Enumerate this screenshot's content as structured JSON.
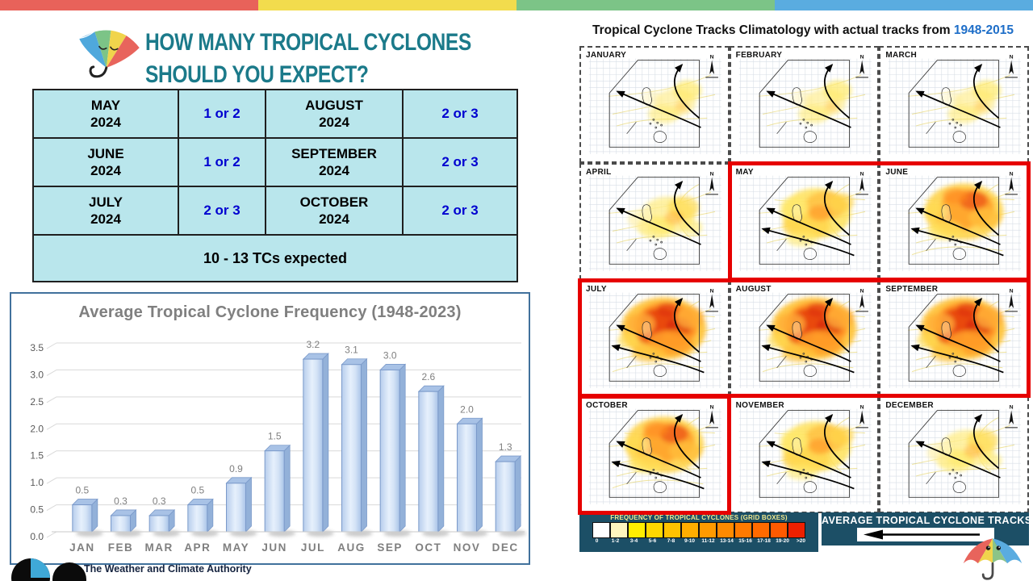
{
  "slide": {
    "ribbon_colors": [
      "#E8625A",
      "#F2DC4D",
      "#7CC487",
      "#5AACE0"
    ],
    "accent_teal": "#1B7A8A"
  },
  "header": {
    "title_line1": "HOW MANY TROPICAL CYCLONES",
    "title_line2": "SHOULD YOU EXPECT?"
  },
  "forecast_table": {
    "bg_color": "#B9E6EC",
    "value_color": "#0000D0",
    "rows": [
      {
        "month1": "MAY",
        "year1": "2024",
        "value1": "1 or 2",
        "month2": "AUGUST",
        "year2": "2024",
        "value2": "2 or 3"
      },
      {
        "month1": "JUNE",
        "year1": "2024",
        "value1": "1 or 2",
        "month2": "SEPTEMBER",
        "year2": "2024",
        "value2": "2 or 3"
      },
      {
        "month1": "JULY",
        "year1": "2024",
        "value1": "2 or 3",
        "month2": "OCTOBER",
        "year2": "2024",
        "value2": "2 or 3"
      }
    ],
    "footer": "10 - 13 TCs expected"
  },
  "chart_data": {
    "type": "bar",
    "title": "Average Tropical Cyclone Frequency (1948-2023)",
    "categories": [
      "JAN",
      "FEB",
      "MAR",
      "APR",
      "MAY",
      "JUN",
      "JUL",
      "AUG",
      "SEP",
      "OCT",
      "NOV",
      "DEC"
    ],
    "values": [
      0.5,
      0.3,
      0.3,
      0.5,
      0.9,
      1.5,
      3.2,
      3.1,
      3.0,
      2.6,
      2.0,
      1.3
    ],
    "ylim": [
      0,
      3.5
    ],
    "ytick_step": 0.5,
    "yticks": [
      "0.0",
      "0.5",
      "1.0",
      "1.5",
      "2.0",
      "2.5",
      "3.0",
      "3.5"
    ],
    "grid": true,
    "legend_position": "none",
    "xlabel": "",
    "ylabel": "",
    "bar_color": "#C5D9F1",
    "bar_border": "#7B9ACA",
    "label_color": "#7F7F7F"
  },
  "brand": {
    "footer_text": "The Weather and Climate Authority"
  },
  "tracks_panel": {
    "title_prefix": "Tropical Cyclone Tracks Climatology with actual tracks from ",
    "title_years": "1948-2015",
    "years_color": "#1E6EC8",
    "highlight_color": "#E60000",
    "months": [
      {
        "label": "JANUARY",
        "heat": 1,
        "highlighted": false
      },
      {
        "label": "FEBRUARY",
        "heat": 1,
        "highlighted": false
      },
      {
        "label": "MARCH",
        "heat": 1,
        "highlighted": false
      },
      {
        "label": "APRIL",
        "heat": 2,
        "highlighted": false
      },
      {
        "label": "MAY",
        "heat": 3,
        "highlighted": true
      },
      {
        "label": "JUNE",
        "heat": 4,
        "highlighted": true
      },
      {
        "label": "JULY",
        "heat": 5,
        "highlighted": true
      },
      {
        "label": "AUGUST",
        "heat": 5,
        "highlighted": true
      },
      {
        "label": "SEPTEMBER",
        "heat": 5,
        "highlighted": true
      },
      {
        "label": "OCTOBER",
        "heat": 4,
        "highlighted": true
      },
      {
        "label": "NOVEMBER",
        "heat": 3,
        "highlighted": false
      },
      {
        "label": "DECEMBER",
        "heat": 2,
        "highlighted": false
      }
    ],
    "legend": {
      "panel_color": "#1C4F66",
      "frequency_title": "FREQUENCY OF TROPICAL CYCLONES (GRID BOXES)",
      "bins": [
        "0",
        "1-2",
        "3-4",
        "5-6",
        "7-8",
        "9-10",
        "11-12",
        "13-14",
        "15-16",
        "17-18",
        "19-20",
        ">20"
      ],
      "bin_colors": [
        "#FFFFFF",
        "#FFF6BE",
        "#FFEE00",
        "#FFD800",
        "#FFC300",
        "#FFAD00",
        "#FF9A00",
        "#FF8A00",
        "#FF7A00",
        "#FF6A00",
        "#FF5A00",
        "#EE2000"
      ],
      "tracks_title": "AVERAGE TROPICAL CYCLONE TRACKS"
    }
  }
}
